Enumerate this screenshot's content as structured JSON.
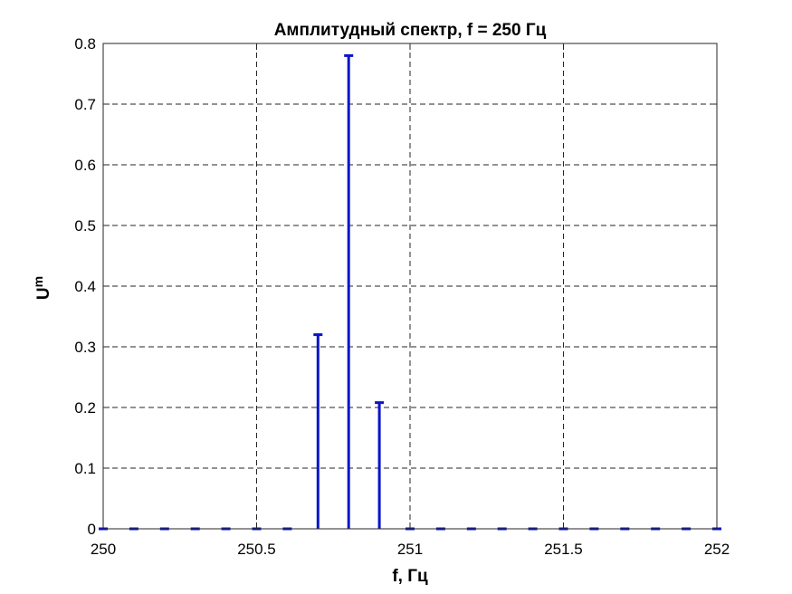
{
  "chart_data": {
    "type": "stem",
    "title": "Амплитудный спектр, f = 250 Гц",
    "xlabel": "f, Гц",
    "ylabel": "U",
    "ylabel_subscript": "m",
    "xlim": [
      250,
      252
    ],
    "ylim": [
      0,
      0.8
    ],
    "x_ticks": [
      250,
      250.5,
      251,
      251.5,
      252
    ],
    "x_tick_labels": [
      "250",
      "250.5",
      "251",
      "251.5",
      "252"
    ],
    "y_ticks": [
      0,
      0.1,
      0.2,
      0.3,
      0.4,
      0.5,
      0.6,
      0.7,
      0.8
    ],
    "y_tick_labels": [
      "0",
      "0.1",
      "0.2",
      "0.3",
      "0.4",
      "0.5",
      "0.6",
      "0.7",
      "0.8"
    ],
    "grid": true,
    "series": [
      {
        "color": "#0a14c8",
        "points": [
          {
            "x": 250.0,
            "y": 0
          },
          {
            "x": 250.1,
            "y": 0
          },
          {
            "x": 250.2,
            "y": 0
          },
          {
            "x": 250.3,
            "y": 0
          },
          {
            "x": 250.4,
            "y": 0
          },
          {
            "x": 250.5,
            "y": 0
          },
          {
            "x": 250.6,
            "y": 0
          },
          {
            "x": 250.7,
            "y": 0.32
          },
          {
            "x": 250.8,
            "y": 0.78
          },
          {
            "x": 250.9,
            "y": 0.208
          },
          {
            "x": 251.0,
            "y": 0
          },
          {
            "x": 251.1,
            "y": 0
          },
          {
            "x": 251.2,
            "y": 0
          },
          {
            "x": 251.3,
            "y": 0
          },
          {
            "x": 251.4,
            "y": 0
          },
          {
            "x": 251.5,
            "y": 0
          },
          {
            "x": 251.6,
            "y": 0
          },
          {
            "x": 251.7,
            "y": 0
          },
          {
            "x": 251.8,
            "y": 0
          },
          {
            "x": 251.9,
            "y": 0
          },
          {
            "x": 252.0,
            "y": 0
          }
        ]
      }
    ]
  }
}
